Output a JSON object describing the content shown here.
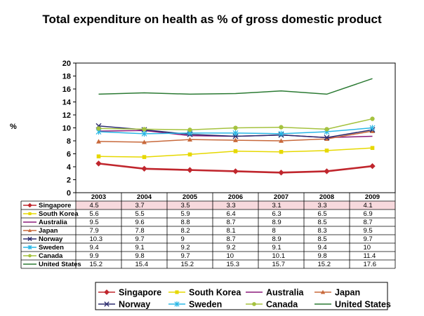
{
  "title": "Total expenditure on health as % of gross domestic product",
  "ylabel": "%",
  "colors": {
    "Singapore": "#c0262d",
    "South Korea": "#e6d800",
    "Australia": "#8b1a7a",
    "Japan": "#c8693b",
    "Norway": "#2b2b6e",
    "Sweden": "#29b7e6",
    "Canada": "#a5c23f",
    "United States": "#2b7a33"
  },
  "markers": {
    "Singapore": "diamond",
    "South Korea": "square",
    "Australia": "line",
    "Japan": "triangle",
    "Norway": "x",
    "Sweden": "star",
    "Canada": "circle",
    "United States": "line"
  },
  "chart_data": {
    "type": "line",
    "title": "Total expenditure on health as % of gross domestic product",
    "xlabel": "",
    "ylabel": "%",
    "ylim": [
      0,
      20
    ],
    "yticks": [
      0,
      2,
      4,
      6,
      8,
      10,
      12,
      14,
      16,
      18,
      20
    ],
    "grid": false,
    "legend": "bottom",
    "data_table": true,
    "categories": [
      "2003",
      "2004",
      "2005",
      "2006",
      "2007",
      "2008",
      "2009"
    ],
    "series": [
      {
        "name": "Singapore",
        "values": [
          4.5,
          3.7,
          3.5,
          3.3,
          3.1,
          3.3,
          4.1
        ],
        "labels": [
          "4.5",
          "3.7",
          "3.5",
          "3.3",
          "3.1",
          "3.3",
          "4.1"
        ]
      },
      {
        "name": "South Korea",
        "values": [
          5.6,
          5.5,
          5.9,
          6.4,
          6.3,
          6.5,
          6.9
        ],
        "labels": [
          "5.6",
          "5.5",
          "5.9",
          "6.4",
          "6.3",
          "6.5",
          "6.9"
        ]
      },
      {
        "name": "Australia",
        "values": [
          9.5,
          9.6,
          8.8,
          8.7,
          8.9,
          8.5,
          8.7
        ],
        "labels": [
          "9.5",
          "9.6",
          "8.8",
          "8.7",
          "8.9",
          "8.5",
          "8.7"
        ]
      },
      {
        "name": "Japan",
        "values": [
          7.9,
          7.8,
          8.2,
          8.1,
          8,
          8.3,
          9.5
        ],
        "labels": [
          "7.9",
          "7.8",
          "8.2",
          "8.1",
          "8",
          "8.3",
          "9.5"
        ]
      },
      {
        "name": "Norway",
        "values": [
          10.3,
          9.7,
          9,
          8.7,
          8.9,
          8.5,
          9.7
        ],
        "labels": [
          "10.3",
          "9.7",
          "9",
          "8.7",
          "8.9",
          "8.5",
          "9.7"
        ]
      },
      {
        "name": "Sweden",
        "values": [
          9.4,
          9.1,
          9.2,
          9.2,
          9.1,
          9.4,
          10
        ],
        "labels": [
          "9.4",
          "9.1",
          "9.2",
          "9.2",
          "9.1",
          "9.4",
          "10"
        ]
      },
      {
        "name": "Canada",
        "values": [
          9.9,
          9.8,
          9.7,
          10,
          10.1,
          9.8,
          11.4
        ],
        "labels": [
          "9.9",
          "9.8",
          "9.7",
          "10",
          "10.1",
          "9.8",
          "11.4"
        ]
      },
      {
        "name": "United States",
        "values": [
          15.2,
          15.4,
          15.2,
          15.3,
          15.7,
          15.2,
          17.6
        ],
        "labels": [
          "15.2",
          "15.4",
          "15.2",
          "15.3",
          "15.7",
          "15.2",
          "17.6"
        ]
      }
    ]
  }
}
